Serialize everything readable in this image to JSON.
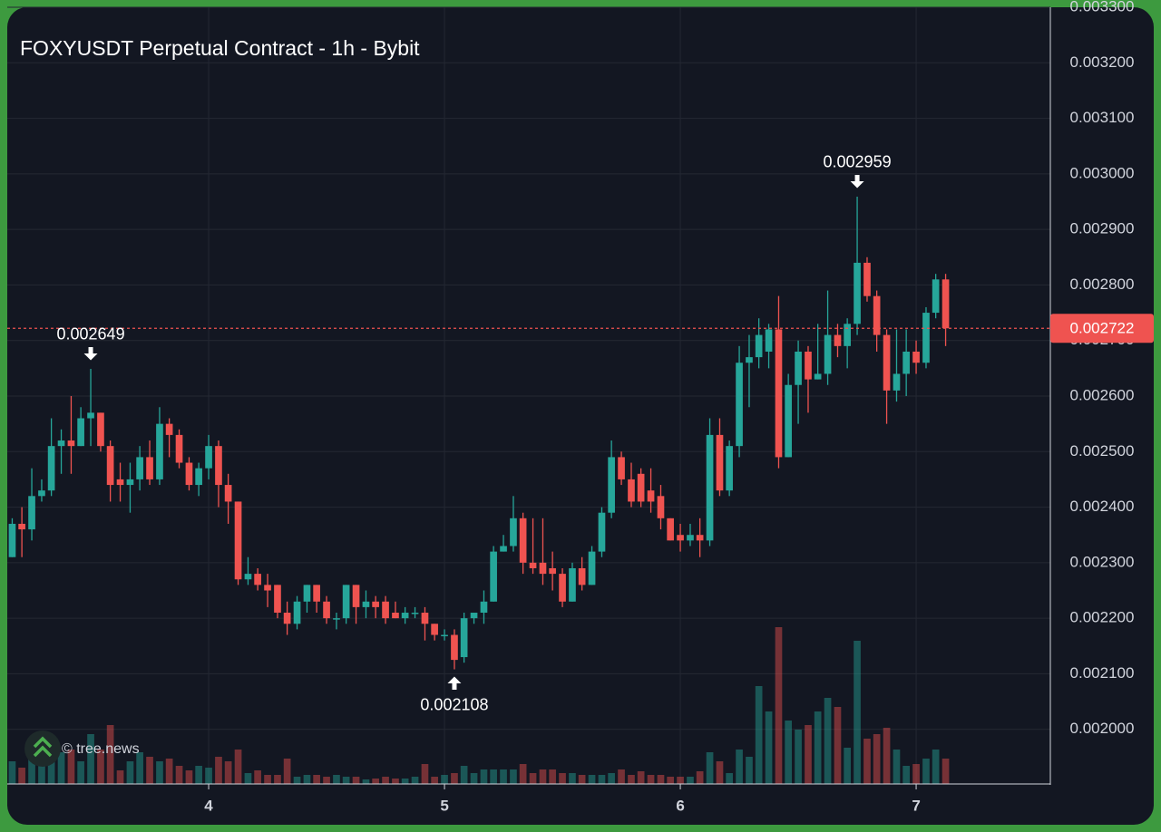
{
  "chart_data": {
    "type": "candlestick",
    "title": "FOXYUSDT Perpetual Contract - 1h - Bybit",
    "watermark": "© tree.news",
    "up_color": "#26a69a",
    "down_color": "#ef5350",
    "grid": true,
    "xlim": [
      3.146,
      7.569
    ],
    "xticks": [
      4,
      5,
      6,
      7
    ],
    "ylim": [
      0.0019,
      0.0033
    ],
    "yticks": [
      {
        "value": 0.002,
        "label": "0.002000"
      },
      {
        "value": 0.0021,
        "label": "0.002100"
      },
      {
        "value": 0.0022,
        "label": "0.002200"
      },
      {
        "value": 0.0023,
        "label": "0.002300"
      },
      {
        "value": 0.0024,
        "label": "0.002400"
      },
      {
        "value": 0.0025,
        "label": "0.002500"
      },
      {
        "value": 0.0026,
        "label": "0.002600"
      },
      {
        "value": 0.0027,
        "label": "0.002700"
      },
      {
        "value": 0.0028,
        "label": "0.002800"
      },
      {
        "value": 0.0029,
        "label": "0.002900"
      },
      {
        "value": 0.003,
        "label": "0.003000"
      },
      {
        "value": 0.0031,
        "label": "0.003100"
      },
      {
        "value": 0.0032,
        "label": "0.003200"
      },
      {
        "value": 0.0033,
        "label": "0.003300"
      }
    ],
    "last_price": {
      "value": 0.002722,
      "label": "0.002722"
    },
    "markers": [
      {
        "kind": "high",
        "x": 3.5,
        "value": 0.002649
      },
      {
        "kind": "low",
        "x": 5.042,
        "value": 0.002108
      },
      {
        "kind": "high",
        "x": 6.75,
        "value": 0.002959
      }
    ],
    "x": [
      3.167,
      3.208,
      3.25,
      3.292,
      3.333,
      3.375,
      3.417,
      3.458,
      3.5,
      3.542,
      3.583,
      3.625,
      3.667,
      3.708,
      3.75,
      3.792,
      3.833,
      3.875,
      3.917,
      3.958,
      4.0,
      4.042,
      4.083,
      4.125,
      4.167,
      4.208,
      4.25,
      4.292,
      4.333,
      4.375,
      4.417,
      4.458,
      4.5,
      4.542,
      4.583,
      4.625,
      4.667,
      4.708,
      4.75,
      4.792,
      4.833,
      4.875,
      4.917,
      4.958,
      5.0,
      5.042,
      5.083,
      5.125,
      5.167,
      5.208,
      5.25,
      5.292,
      5.333,
      5.375,
      5.417,
      5.458,
      5.5,
      5.542,
      5.583,
      5.625,
      5.667,
      5.708,
      5.75,
      5.792,
      5.833,
      5.875,
      5.917,
      5.958,
      6.0,
      6.042,
      6.083,
      6.125,
      6.167,
      6.208,
      6.25,
      6.292,
      6.333,
      6.375,
      6.417,
      6.458,
      6.5,
      6.542,
      6.583,
      6.625,
      6.667,
      6.708,
      6.75,
      6.792,
      6.833,
      6.875,
      6.917,
      6.958,
      7.0,
      7.042,
      7.083,
      7.125
    ],
    "open": [
      0.00231,
      0.00237,
      0.00236,
      0.00242,
      0.00243,
      0.00251,
      0.00252,
      0.00251,
      0.00256,
      0.00257,
      0.00251,
      0.00245,
      0.00244,
      0.00245,
      0.00249,
      0.00245,
      0.00255,
      0.00253,
      0.00248,
      0.00244,
      0.00247,
      0.00251,
      0.00244,
      0.00241,
      0.00227,
      0.00228,
      0.00226,
      0.00226,
      0.00221,
      0.00219,
      0.00223,
      0.00226,
      0.00223,
      0.0022,
      0.0022,
      0.00226,
      0.00222,
      0.00223,
      0.00223,
      0.00221,
      0.0022,
      0.00221,
      0.00221,
      0.00219,
      0.00217,
      0.00217,
      0.00213,
      0.0022,
      0.00221,
      0.00223,
      0.00232,
      0.00233,
      0.00238,
      0.0023,
      0.0023,
      0.00229,
      0.00228,
      0.00223,
      0.00229,
      0.00226,
      0.00232,
      0.00239,
      0.00249,
      0.00245,
      0.00246,
      0.00243,
      0.00242,
      0.00238,
      0.00235,
      0.00234,
      0.00235,
      0.00234,
      0.00253,
      0.00243,
      0.00251,
      0.00266,
      0.00267,
      0.00268,
      0.00272,
      0.00249,
      0.00262,
      0.00268,
      0.00263,
      0.00264,
      0.00271,
      0.00269,
      0.00273,
      0.00284,
      0.00278,
      0.00271,
      0.00261,
      0.00264,
      0.00268,
      0.00266,
      0.00275,
      0.00281
    ],
    "high": [
      0.00238,
      0.0024,
      0.00247,
      0.00245,
      0.00256,
      0.00254,
      0.0026,
      0.00258,
      0.002649,
      0.00257,
      0.00252,
      0.00248,
      0.00248,
      0.00251,
      0.00252,
      0.00258,
      0.00256,
      0.00254,
      0.00249,
      0.00248,
      0.00253,
      0.00252,
      0.00246,
      0.00241,
      0.00231,
      0.00229,
      0.00228,
      0.00226,
      0.00223,
      0.00224,
      0.00226,
      0.00226,
      0.00224,
      0.00221,
      0.00226,
      0.00226,
      0.00225,
      0.00224,
      0.00224,
      0.00223,
      0.00222,
      0.00222,
      0.00222,
      0.00219,
      0.00218,
      0.00218,
      0.00221,
      0.00221,
      0.00225,
      0.00233,
      0.00235,
      0.00242,
      0.00239,
      0.00238,
      0.00238,
      0.00232,
      0.00229,
      0.0023,
      0.00231,
      0.00233,
      0.0024,
      0.00252,
      0.0025,
      0.00248,
      0.00247,
      0.00247,
      0.00244,
      0.00238,
      0.00237,
      0.00237,
      0.00238,
      0.00256,
      0.00256,
      0.00252,
      0.00269,
      0.00271,
      0.00274,
      0.00273,
      0.00278,
      0.00264,
      0.0027,
      0.00269,
      0.00273,
      0.00279,
      0.00273,
      0.00274,
      0.002959,
      0.00285,
      0.00279,
      0.00272,
      0.00272,
      0.00272,
      0.0027,
      0.00276,
      0.00282,
      0.00282
    ],
    "low": [
      0.00231,
      0.00231,
      0.00234,
      0.00241,
      0.00242,
      0.00246,
      0.00246,
      0.00251,
      0.00251,
      0.0025,
      0.00241,
      0.00241,
      0.00239,
      0.00243,
      0.00244,
      0.00244,
      0.00249,
      0.00247,
      0.00243,
      0.00242,
      0.00245,
      0.0024,
      0.00237,
      0.00226,
      0.00226,
      0.00225,
      0.00222,
      0.0022,
      0.00217,
      0.00218,
      0.00221,
      0.00221,
      0.00219,
      0.00218,
      0.00219,
      0.00219,
      0.0022,
      0.0022,
      0.00219,
      0.0022,
      0.00219,
      0.0022,
      0.00216,
      0.00216,
      0.00216,
      0.002108,
      0.00212,
      0.00219,
      0.00219,
      0.00223,
      0.00232,
      0.00232,
      0.00228,
      0.00228,
      0.00226,
      0.00225,
      0.00222,
      0.00223,
      0.00225,
      0.00226,
      0.00231,
      0.00238,
      0.00244,
      0.0024,
      0.0024,
      0.00239,
      0.00236,
      0.00234,
      0.00232,
      0.00233,
      0.00231,
      0.00233,
      0.00242,
      0.00242,
      0.00249,
      0.00258,
      0.00265,
      0.00265,
      0.00247,
      0.00249,
      0.00255,
      0.00257,
      0.00263,
      0.00262,
      0.00267,
      0.00265,
      0.00271,
      0.00277,
      0.00268,
      0.00255,
      0.00259,
      0.0026,
      0.00264,
      0.00265,
      0.00274,
      0.00269
    ],
    "close": [
      0.00237,
      0.00236,
      0.00242,
      0.00243,
      0.00251,
      0.00252,
      0.00251,
      0.00256,
      0.00257,
      0.00251,
      0.00244,
      0.00244,
      0.00245,
      0.00249,
      0.00245,
      0.00255,
      0.00253,
      0.00248,
      0.00244,
      0.00247,
      0.00251,
      0.00244,
      0.00241,
      0.00227,
      0.00228,
      0.00226,
      0.00225,
      0.00221,
      0.00219,
      0.00223,
      0.00226,
      0.00223,
      0.0022,
      0.0022,
      0.00226,
      0.00222,
      0.00223,
      0.00222,
      0.0022,
      0.0022,
      0.00221,
      0.00221,
      0.00219,
      0.00217,
      0.00217,
      0.002125,
      0.0022,
      0.00221,
      0.00223,
      0.00232,
      0.00233,
      0.00238,
      0.0023,
      0.00229,
      0.00228,
      0.00228,
      0.00223,
      0.00229,
      0.00226,
      0.00232,
      0.00239,
      0.00249,
      0.00245,
      0.00241,
      0.00241,
      0.00241,
      0.00238,
      0.00234,
      0.00234,
      0.00235,
      0.00234,
      0.00253,
      0.00243,
      0.00251,
      0.00266,
      0.00267,
      0.00271,
      0.00272,
      0.00249,
      0.00262,
      0.00268,
      0.00263,
      0.00264,
      0.00271,
      0.00269,
      0.00273,
      0.00284,
      0.00278,
      0.00271,
      0.00261,
      0.00264,
      0.00268,
      0.00266,
      0.00275,
      0.00281,
      0.002722
    ],
    "volume": [
      25,
      18,
      30,
      25,
      40,
      35,
      38,
      25,
      55,
      38,
      65,
      15,
      25,
      35,
      30,
      25,
      28,
      20,
      15,
      20,
      18,
      30,
      25,
      38,
      12,
      15,
      10,
      10,
      28,
      8,
      10,
      10,
      8,
      10,
      8,
      8,
      5,
      6,
      8,
      6,
      6,
      8,
      22,
      8,
      10,
      12,
      20,
      12,
      16,
      16,
      16,
      16,
      22,
      12,
      16,
      16,
      12,
      12,
      10,
      10,
      10,
      12,
      16,
      10,
      14,
      10,
      10,
      8,
      8,
      8,
      14,
      35,
      25,
      12,
      38,
      30,
      108,
      80,
      173,
      70,
      60,
      65,
      80,
      95,
      85,
      40,
      158,
      50,
      55,
      62,
      38,
      20,
      22,
      28,
      38,
      28
    ]
  }
}
